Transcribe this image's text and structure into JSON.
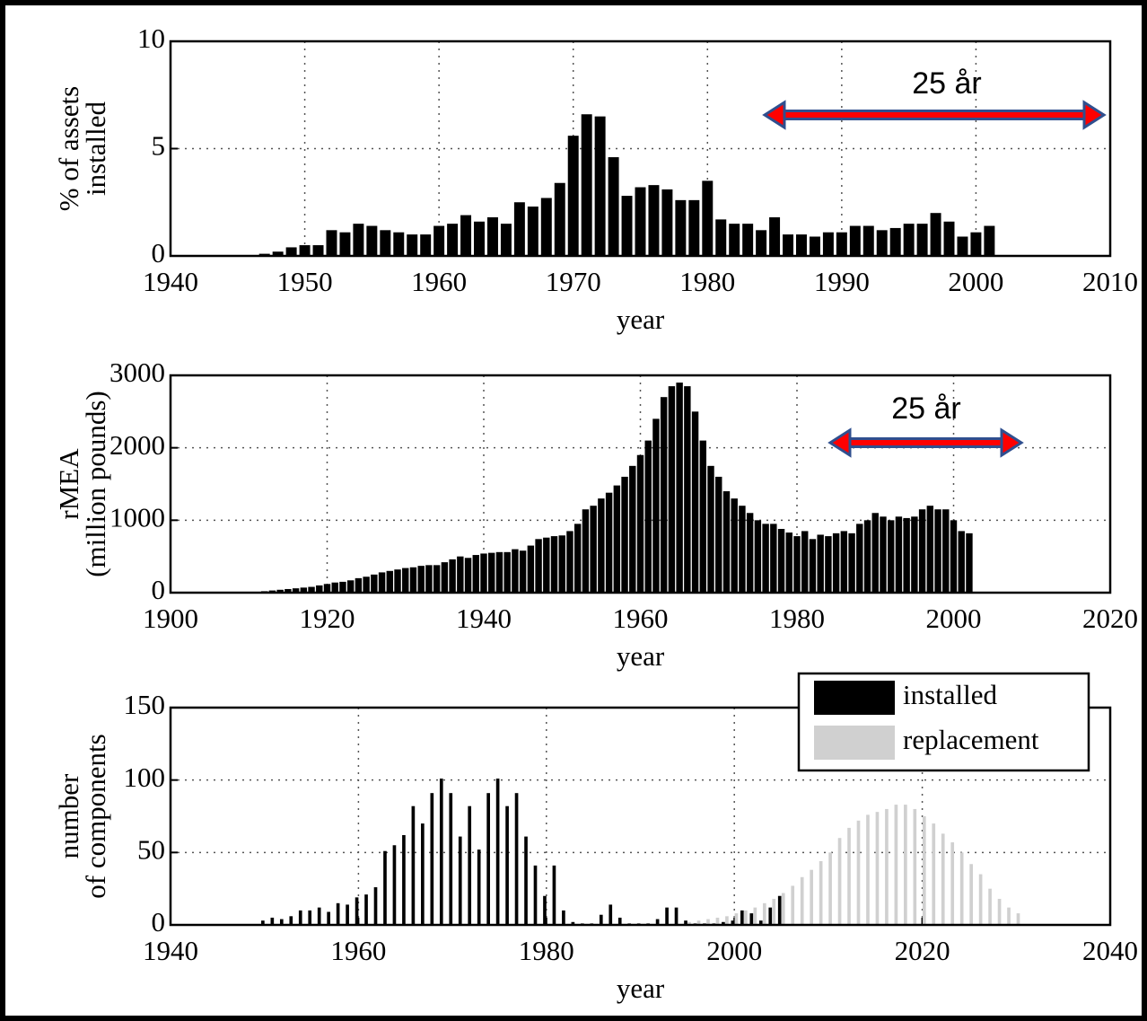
{
  "chart_data": [
    {
      "type": "bar",
      "ylabel": [
        "% of assets",
        "installed"
      ],
      "xlabel": "year",
      "annotation": "25 år",
      "grid": true,
      "xlim": [
        1940,
        2010
      ],
      "xticks": [
        1940,
        1950,
        1960,
        1970,
        1980,
        1990,
        2000,
        2010
      ],
      "ylim": [
        0,
        10
      ],
      "yticks": [
        0,
        5,
        10
      ],
      "series": [
        {
          "color": "#000000",
          "x": [
            1947,
            1948,
            1949,
            1950,
            1951,
            1952,
            1953,
            1954,
            1955,
            1956,
            1957,
            1958,
            1959,
            1960,
            1961,
            1962,
            1963,
            1964,
            1965,
            1966,
            1967,
            1968,
            1969,
            1970,
            1971,
            1972,
            1973,
            1974,
            1975,
            1976,
            1977,
            1978,
            1979,
            1980,
            1981,
            1982,
            1983,
            1984,
            1985,
            1986,
            1987,
            1988,
            1989,
            1990,
            1991,
            1992,
            1993,
            1994,
            1995,
            1996,
            1997,
            1998,
            1999,
            2000,
            2001
          ],
          "values": [
            0.1,
            0.2,
            0.4,
            0.5,
            0.5,
            1.2,
            1.1,
            1.5,
            1.4,
            1.2,
            1.1,
            1.0,
            1.0,
            1.4,
            1.5,
            1.9,
            1.6,
            1.8,
            1.5,
            2.5,
            2.3,
            2.7,
            3.4,
            5.6,
            6.6,
            6.5,
            4.6,
            2.8,
            3.2,
            3.3,
            3.1,
            2.6,
            2.6,
            3.5,
            1.7,
            1.5,
            1.5,
            1.2,
            1.8,
            1.0,
            1.0,
            0.9,
            1.1,
            1.1,
            1.4,
            1.4,
            1.2,
            1.3,
            1.5,
            1.5,
            2.0,
            1.6,
            0.9,
            1.1,
            1.4
          ]
        }
      ]
    },
    {
      "type": "bar",
      "ylabel": [
        "rMEA",
        "(million pounds)"
      ],
      "xlabel": "year",
      "annotation": "25 år",
      "grid": true,
      "xlim": [
        1900,
        2020
      ],
      "xticks": [
        1900,
        1920,
        1940,
        1960,
        1980,
        2000,
        2020
      ],
      "ylim": [
        0,
        3000
      ],
      "yticks": [
        0,
        1000,
        2000,
        3000
      ],
      "series": [
        {
          "color": "#000000",
          "x": [
            1910,
            1911,
            1912,
            1913,
            1914,
            1915,
            1916,
            1917,
            1918,
            1919,
            1920,
            1921,
            1922,
            1923,
            1924,
            1925,
            1926,
            1927,
            1928,
            1929,
            1930,
            1931,
            1932,
            1933,
            1934,
            1935,
            1936,
            1937,
            1938,
            1939,
            1940,
            1941,
            1942,
            1943,
            1944,
            1945,
            1946,
            1947,
            1948,
            1949,
            1950,
            1951,
            1952,
            1953,
            1954,
            1955,
            1956,
            1957,
            1958,
            1959,
            1960,
            1961,
            1962,
            1963,
            1964,
            1965,
            1966,
            1967,
            1968,
            1969,
            1970,
            1971,
            1972,
            1973,
            1974,
            1975,
            1976,
            1977,
            1978,
            1979,
            1980,
            1981,
            1982,
            1983,
            1984,
            1985,
            1986,
            1987,
            1988,
            1989,
            1990,
            1991,
            1992,
            1993,
            1994,
            1995,
            1996,
            1997,
            1998,
            1999,
            2000,
            2001,
            2002
          ],
          "values": [
            5,
            10,
            20,
            30,
            40,
            50,
            60,
            70,
            80,
            100,
            120,
            140,
            150,
            170,
            200,
            220,
            250,
            280,
            300,
            320,
            340,
            350,
            370,
            380,
            380,
            420,
            460,
            500,
            480,
            520,
            540,
            550,
            560,
            560,
            600,
            580,
            650,
            740,
            760,
            780,
            790,
            850,
            950,
            1150,
            1200,
            1300,
            1380,
            1480,
            1600,
            1750,
            1900,
            2100,
            2400,
            2700,
            2850,
            2900,
            2850,
            2500,
            2100,
            1750,
            1600,
            1400,
            1300,
            1200,
            1100,
            1000,
            950,
            950,
            880,
            830,
            780,
            850,
            740,
            800,
            780,
            820,
            850,
            820,
            950,
            1000,
            1100,
            1050,
            1000,
            1050,
            1030,
            1050,
            1150,
            1200,
            1150,
            1150,
            1000,
            850,
            820
          ]
        }
      ]
    },
    {
      "type": "bar",
      "ylabel": [
        "number",
        "of components"
      ],
      "xlabel": "year",
      "grid": true,
      "legend": "upper right",
      "xlim": [
        1940,
        2040
      ],
      "xticks": [
        1940,
        1960,
        1980,
        2000,
        2020,
        2040
      ],
      "ylim": [
        0,
        150
      ],
      "yticks": [
        0,
        50,
        100,
        150
      ],
      "series": [
        {
          "name": "installed",
          "color": "#000000",
          "x": [
            1950,
            1951,
            1952,
            1953,
            1954,
            1955,
            1956,
            1957,
            1958,
            1959,
            1960,
            1961,
            1962,
            1963,
            1964,
            1965,
            1966,
            1967,
            1968,
            1969,
            1970,
            1971,
            1972,
            1973,
            1974,
            1975,
            1976,
            1977,
            1978,
            1979,
            1980,
            1981,
            1982,
            1983,
            1984,
            1985,
            1986,
            1987,
            1988,
            1989,
            1990,
            1991,
            1992,
            1993,
            1994,
            1995,
            1996,
            1997,
            1998,
            1999,
            2000,
            2001,
            2002,
            2003,
            2004,
            2005
          ],
          "values": [
            3,
            5,
            4,
            6,
            10,
            10,
            12,
            9,
            15,
            14,
            19,
            21,
            26,
            51,
            55,
            62,
            82,
            70,
            91,
            101,
            91,
            61,
            82,
            52,
            91,
            101,
            82,
            91,
            61,
            41,
            20,
            41,
            10,
            2,
            1,
            1,
            7,
            14,
            5,
            1,
            1,
            1,
            4,
            12,
            12,
            3,
            1,
            1,
            1,
            2,
            3,
            10,
            8,
            3,
            12,
            20
          ]
        },
        {
          "name": "replacement",
          "color": "#d0d0d0",
          "x": [
            1995,
            1996,
            1997,
            1998,
            1999,
            2000,
            2001,
            2002,
            2003,
            2004,
            2005,
            2006,
            2007,
            2008,
            2009,
            2010,
            2011,
            2012,
            2013,
            2014,
            2015,
            2016,
            2017,
            2018,
            2019,
            2020,
            2021,
            2022,
            2023,
            2024,
            2025,
            2026,
            2027,
            2028,
            2029,
            2030
          ],
          "values": [
            2,
            3,
            4,
            5,
            6,
            8,
            10,
            12,
            15,
            18,
            22,
            27,
            33,
            38,
            44,
            50,
            60,
            67,
            72,
            76,
            78,
            80,
            83,
            83,
            80,
            75,
            70,
            63,
            57,
            50,
            42,
            35,
            25,
            18,
            12,
            8
          ]
        }
      ]
    }
  ]
}
